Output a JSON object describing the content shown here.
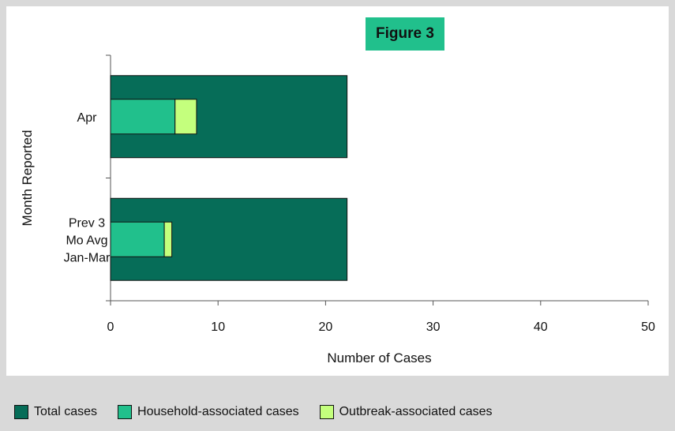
{
  "figure_label": "Figure 3",
  "colors": {
    "total": "#066d58",
    "household": "#21c08c",
    "outbreak": "#c4ff7d"
  },
  "chart_data": {
    "type": "bar",
    "orientation": "horizontal",
    "stacked_segments_over_total": true,
    "title": "",
    "xlabel": "Number of Cases",
    "ylabel": "Month Reported",
    "xlim": [
      0,
      50
    ],
    "x_ticks": [
      "0",
      "10",
      "20",
      "30",
      "40",
      "50"
    ],
    "categories": [
      "Apr",
      "Prev 3 Mo Avg Jan-Mar"
    ],
    "category_lines": [
      [
        "Apr"
      ],
      [
        "Prev 3",
        "Mo Avg",
        "Jan-Mar"
      ]
    ],
    "series": [
      {
        "name": "Total cases",
        "values": [
          22,
          22
        ]
      },
      {
        "name": "Household-associated cases",
        "values": [
          6,
          5
        ]
      },
      {
        "name": "Outbreak-associated cases",
        "values": [
          2,
          0.7
        ]
      }
    ],
    "legend_position": "bottom"
  }
}
